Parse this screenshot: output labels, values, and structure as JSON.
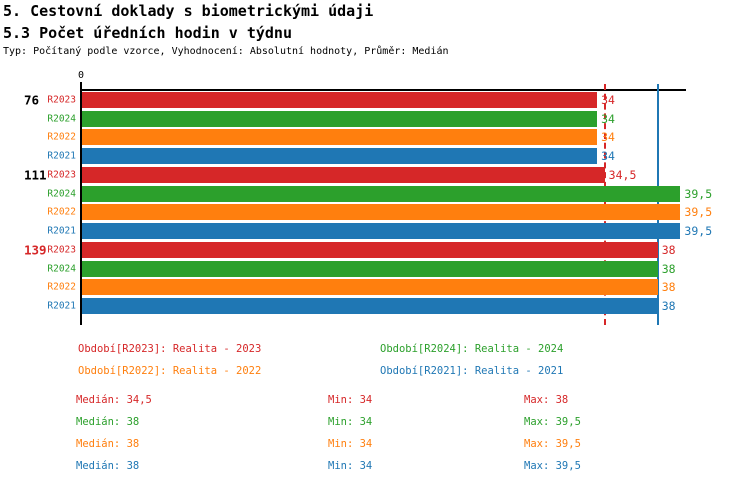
{
  "header": {
    "title1": "5. Cestovní doklady s biometrickými údaji",
    "title2": "5.3 Počet úředních hodin v týdnu",
    "meta": "Typ: Počítaný podle vzorce, Vyhodnocení: Absolutní hodnoty, Průměr: Medián"
  },
  "colors": {
    "red": "#d62728",
    "green": "#2ca02c",
    "orange": "#ff7f0e",
    "blue": "#1f77b4",
    "axis": "#000000"
  },
  "chart_data": {
    "type": "bar",
    "orientation": "horizontal",
    "title": "5.3 Počet úředních hodin v týdnu",
    "xlabel": "",
    "ylabel": "",
    "axis": {
      "min": 0,
      "max": 39.9,
      "origin_tick_label": "0",
      "grid": false
    },
    "series_order": [
      "R2023",
      "R2024",
      "R2022",
      "R2021"
    ],
    "groups": [
      {
        "label": "76",
        "label_color": "#000000",
        "bars": [
          {
            "series": "R2023",
            "color": "#d62728",
            "value": 34,
            "value_label": "34"
          },
          {
            "series": "R2024",
            "color": "#2ca02c",
            "value": 34,
            "value_label": "34"
          },
          {
            "series": "R2022",
            "color": "#ff7f0e",
            "value": 34,
            "value_label": "34"
          },
          {
            "series": "R2021",
            "color": "#1f77b4",
            "value": 34,
            "value_label": "34"
          }
        ]
      },
      {
        "label": "111",
        "label_color": "#000000",
        "bars": [
          {
            "series": "R2023",
            "color": "#d62728",
            "value": 34.5,
            "value_label": "34,5"
          },
          {
            "series": "R2024",
            "color": "#2ca02c",
            "value": 39.5,
            "value_label": "39,5"
          },
          {
            "series": "R2022",
            "color": "#ff7f0e",
            "value": 39.5,
            "value_label": "39,5"
          },
          {
            "series": "R2021",
            "color": "#1f77b4",
            "value": 39.5,
            "value_label": "39,5"
          }
        ]
      },
      {
        "label": "139",
        "label_color": "#d62728",
        "bars": [
          {
            "series": "R2023",
            "color": "#d62728",
            "value": 38,
            "value_label": "38"
          },
          {
            "series": "R2024",
            "color": "#2ca02c",
            "value": 38,
            "value_label": "38"
          },
          {
            "series": "R2022",
            "color": "#ff7f0e",
            "value": 38,
            "value_label": "38"
          },
          {
            "series": "R2021",
            "color": "#1f77b4",
            "value": 38,
            "value_label": "38"
          }
        ]
      }
    ],
    "reference_lines": [
      {
        "value": 34.5,
        "color": "#d62728",
        "style": "dashed"
      },
      {
        "value": 38,
        "color": "#1f77b4",
        "style": "solid"
      }
    ],
    "legend_position": "bottom"
  },
  "legend": {
    "items": [
      {
        "text": "Období[R2023]: Realita - 2023",
        "color": "#d62728"
      },
      {
        "text": "Období[R2024]: Realita - 2024",
        "color": "#2ca02c"
      },
      {
        "text": "Období[R2022]: Realita - 2022",
        "color": "#ff7f0e"
      },
      {
        "text": "Období[R2021]: Realita - 2021",
        "color": "#1f77b4"
      }
    ]
  },
  "stats": {
    "rows": [
      {
        "color": "#d62728",
        "median": "Medián: 34,5",
        "min": "Min: 34",
        "max": "Max: 38"
      },
      {
        "color": "#2ca02c",
        "median": "Medián: 38",
        "min": "Min: 34",
        "max": "Max: 39,5"
      },
      {
        "color": "#ff7f0e",
        "median": "Medián: 38",
        "min": "Min: 34",
        "max": "Max: 39,5"
      },
      {
        "color": "#1f77b4",
        "median": "Medián: 38",
        "min": "Min: 34",
        "max": "Max: 39,5"
      }
    ]
  }
}
